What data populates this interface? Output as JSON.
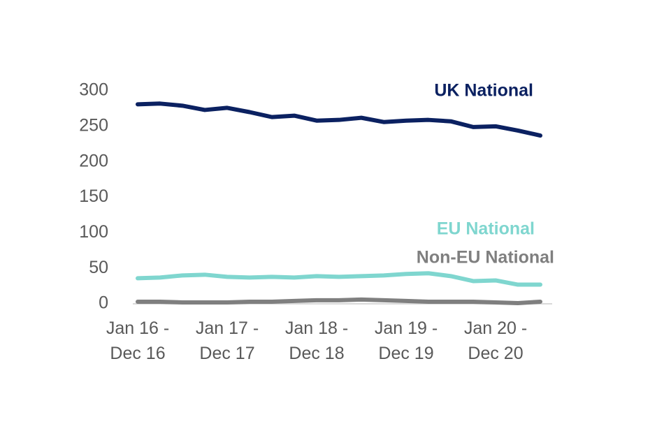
{
  "chart_data": {
    "type": "line",
    "categories": [
      "Jan 16 - Dec 16",
      null,
      null,
      null,
      "Jan 17 - Dec 17",
      null,
      null,
      null,
      "Jan 18 - Dec 18",
      null,
      null,
      null,
      "Jan 19 - Dec 19",
      null,
      null,
      null,
      "Jan 20 - Dec 20",
      null,
      null
    ],
    "series": [
      {
        "name": "UK National",
        "color": "#0b2161",
        "values": [
          281,
          282,
          279,
          273,
          276,
          270,
          263,
          265,
          258,
          259,
          262,
          256,
          258,
          259,
          257,
          249,
          250,
          244,
          237
        ]
      },
      {
        "name": "EU National",
        "color": "#7fd6cf",
        "values": [
          36,
          37,
          40,
          41,
          38,
          37,
          38,
          37,
          39,
          38,
          39,
          40,
          42,
          43,
          39,
          32,
          33,
          27,
          27
        ]
      },
      {
        "name": "Non-EU National",
        "color": "#7f7f7f",
        "values": [
          3,
          3,
          2,
          2,
          2,
          3,
          3,
          4,
          5,
          5,
          6,
          5,
          4,
          3,
          3,
          3,
          2,
          1,
          3
        ]
      }
    ],
    "ylim": [
      0,
      300
    ],
    "yticks": [
      0,
      50,
      100,
      150,
      200,
      250,
      300
    ],
    "grid": false
  }
}
